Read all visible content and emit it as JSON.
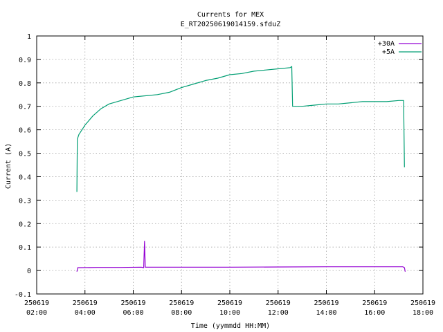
{
  "chart_data": {
    "type": "line",
    "title": "Currents for MEX",
    "subtitle": "E_RT20250619014159.sfduZ",
    "xlabel": "Time (yymmdd HH:MM)",
    "ylabel": "Current (A)",
    "xlim": [
      "250619 02:00",
      "250619 18:00"
    ],
    "ylim": [
      -0.1,
      1
    ],
    "grid": true,
    "legend_position": "top-right",
    "x_ticks": [
      {
        "date": "250619",
        "time": "02:00"
      },
      {
        "date": "250619",
        "time": "04:00"
      },
      {
        "date": "250619",
        "time": "06:00"
      },
      {
        "date": "250619",
        "time": "08:00"
      },
      {
        "date": "250619",
        "time": "10:00"
      },
      {
        "date": "250619",
        "time": "12:00"
      },
      {
        "date": "250619",
        "time": "14:00"
      },
      {
        "date": "250619",
        "time": "16:00"
      },
      {
        "date": "250619",
        "time": "18:00"
      }
    ],
    "y_ticks": [
      "-0.1",
      "0",
      "0.1",
      "0.2",
      "0.3",
      "0.4",
      "0.5",
      "0.6",
      "0.7",
      "0.8",
      "0.9",
      "1"
    ],
    "series": [
      {
        "name": "+30A",
        "color": "#9400d3",
        "points": [
          [
            "250619 03:40",
            -0.005
          ],
          [
            "250619 03:42",
            0.012
          ],
          [
            "250619 04:30",
            0.013
          ],
          [
            "250619 05:30",
            0.013
          ],
          [
            "250619 06:20",
            0.014
          ],
          [
            "250619 06:26",
            0.012
          ],
          [
            "250619 06:28",
            0.125
          ],
          [
            "250619 06:30",
            0.014
          ],
          [
            "250619 08:00",
            0.014
          ],
          [
            "250619 10:00",
            0.014
          ],
          [
            "250619 12:00",
            0.015
          ],
          [
            "250619 14:00",
            0.016
          ],
          [
            "250619 16:00",
            0.016
          ],
          [
            "250619 17:10",
            0.016
          ],
          [
            "250619 17:14",
            0.012
          ],
          [
            "250619 17:16",
            -0.005
          ]
        ]
      },
      {
        "name": "+5A",
        "color": "#009e73",
        "points": [
          [
            "250619 03:40",
            0.335
          ],
          [
            "250619 03:41",
            0.56
          ],
          [
            "250619 03:45",
            0.58
          ],
          [
            "250619 04:00",
            0.62
          ],
          [
            "250619 04:20",
            0.66
          ],
          [
            "250619 04:40",
            0.69
          ],
          [
            "250619 05:00",
            0.71
          ],
          [
            "250619 05:20",
            0.72
          ],
          [
            "250619 05:40",
            0.73
          ],
          [
            "250619 06:00",
            0.74
          ],
          [
            "250619 06:30",
            0.745
          ],
          [
            "250619 07:00",
            0.75
          ],
          [
            "250619 07:30",
            0.76
          ],
          [
            "250619 08:00",
            0.78
          ],
          [
            "250619 08:30",
            0.795
          ],
          [
            "250619 09:00",
            0.81
          ],
          [
            "250619 09:30",
            0.82
          ],
          [
            "250619 10:00",
            0.835
          ],
          [
            "250619 10:30",
            0.84
          ],
          [
            "250619 11:00",
            0.85
          ],
          [
            "250619 11:30",
            0.855
          ],
          [
            "250619 12:00",
            0.86
          ],
          [
            "250619 12:30",
            0.865
          ],
          [
            "250619 12:34",
            0.87
          ],
          [
            "250619 12:36",
            0.7
          ],
          [
            "250619 13:00",
            0.7
          ],
          [
            "250619 13:30",
            0.705
          ],
          [
            "250619 14:00",
            0.71
          ],
          [
            "250619 14:30",
            0.71
          ],
          [
            "250619 15:00",
            0.715
          ],
          [
            "250619 15:30",
            0.72
          ],
          [
            "250619 16:00",
            0.72
          ],
          [
            "250619 16:30",
            0.72
          ],
          [
            "250619 17:00",
            0.725
          ],
          [
            "250619 17:12",
            0.725
          ],
          [
            "250619 17:14",
            0.44
          ]
        ]
      }
    ]
  }
}
